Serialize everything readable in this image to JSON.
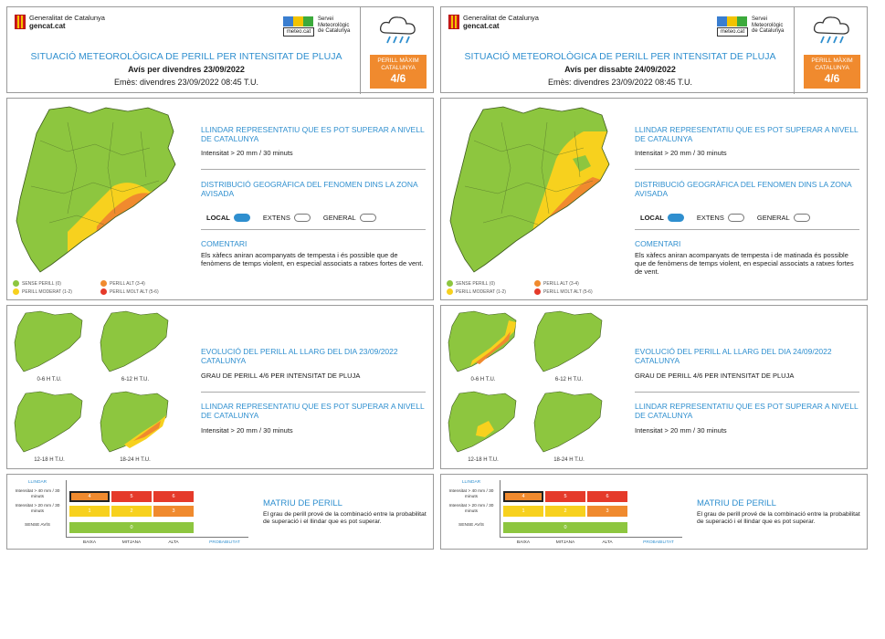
{
  "bulletins": [
    {
      "org": "Generalitat de Catalunya",
      "site": "gencat.cat",
      "smc_label": "meteo.cat",
      "smc_name": "Servei Meteorològic de Catalunya",
      "title": "SITUACIÓ METEOROLÒGICA DE PERILL PER INTENSITAT DE PLUJA",
      "subtitle": "Avís per divendres 23/09/2022",
      "issued": "Emès: divendres 23/09/2022 08:45 T.U.",
      "max_label": "PERILL MÀXIM CATALUNYA",
      "max_value": "4/6",
      "threshold_heading": "LLINDAR REPRESENTATIU QUE ES POT SUPERAR A NIVELL DE CATALUNYA",
      "threshold_text": "Intensitat > 20 mm / 30 minuts",
      "distribution_heading": "DISTRIBUCIÓ GEOGRÀFICA DEL FENOMEN DINS LA ZONA AVISADA",
      "opt_local": "LOCAL",
      "opt_extens": "EXTENS",
      "opt_general": "GENERAL",
      "comments_heading": "COMENTARI",
      "comments_text": "Els xàfecs aniran acompanyats de tempesta i és possible que de fenòmens de temps violent, en especial associats a ratxes fortes de vent.",
      "legend": [
        "SENSE PERILL (0)",
        "PERILL MODERAT (1-2)",
        "PERILL ALT (3-4)",
        "PERILL MOLT ALT (5-6)"
      ],
      "evolution_heading": "EVOLUCIÓ DEL PERILL AL LLARG DEL DIA 23/09/2022 CATALUNYA",
      "evolution_text": "GRAU DE PERILL 4/6 PER INTENSITAT DE PLUJA",
      "threshold2_heading": "LLINDAR REPRESENTATIU QUE ES POT SUPERAR A NIVELL DE CATALUNYA",
      "threshold2_text": "Intensitat > 20 mm / 30 minuts",
      "periods": [
        "0-6 H T.U.",
        "6-12 H T.U.",
        "12-18 H T.U.",
        "18-24 H T.U."
      ],
      "matrix_title": "MATRIU DE PERILL",
      "matrix_text": "El grau de perill prové de la combinació entre la probabilitat de superació i el llindar que es pot superar.",
      "matrix_llindar": "LLINDAR",
      "matrix_rows": [
        "Intensitat > 40 mm / 30 minuts",
        "Intensitat > 20 mm / 30 minuts",
        "SENSE AVÍS"
      ],
      "matrix_cols": [
        "BAIXA",
        "MITJANA",
        "ALTA"
      ],
      "matrix_prob": "PROBABILITAT",
      "matrix_values": [
        "4",
        "5",
        "6",
        "1",
        "2",
        "3",
        "0"
      ]
    },
    {
      "org": "Generalitat de Catalunya",
      "site": "gencat.cat",
      "smc_label": "meteo.cat",
      "smc_name": "Servei Meteorològic de Catalunya",
      "title": "SITUACIÓ METEOROLÒGICA DE PERILL PER INTENSITAT DE PLUJA",
      "subtitle": "Avís per dissabte 24/09/2022",
      "issued": "Emès: divendres 23/09/2022 08:45 T.U.",
      "max_label": "PERILL MÀXIM CATALUNYA",
      "max_value": "4/6",
      "threshold_heading": "LLINDAR REPRESENTATIU QUE ES POT SUPERAR A NIVELL DE CATALUNYA",
      "threshold_text": "Intensitat > 20 mm / 30 minuts",
      "distribution_heading": "DISTRIBUCIÓ GEOGRÀFICA DEL FENOMEN DINS LA ZONA AVISADA",
      "opt_local": "LOCAL",
      "opt_extens": "EXTENS",
      "opt_general": "GENERAL",
      "comments_heading": "COMENTARI",
      "comments_text": "Els xàfecs aniran acompanyats de tempesta i de matinada és possible que de fenòmens de temps violent, en especial associats a ratxes fortes de vent.",
      "legend": [
        "SENSE PERILL (0)",
        "PERILL MODERAT (1-2)",
        "PERILL ALT (3-4)",
        "PERILL MOLT ALT (5-6)"
      ],
      "evolution_heading": "EVOLUCIÓ DEL PERILL AL LLARG DEL DIA 24/09/2022 CATALUNYA",
      "evolution_text": "GRAU DE PERILL 4/6 PER INTENSITAT DE PLUJA",
      "threshold2_heading": "LLINDAR REPRESENTATIU QUE ES POT SUPERAR A NIVELL DE CATALUNYA",
      "threshold2_text": "Intensitat > 20 mm / 30 minuts",
      "periods": [
        "0-6 H T.U.",
        "6-12 H T.U.",
        "12-18 H T.U.",
        "18-24 H T.U."
      ],
      "matrix_title": "MATRIU DE PERILL",
      "matrix_text": "El grau de perill prové de la combinació entre la probabilitat de superació i el llindar que es pot superar.",
      "matrix_llindar": "LLINDAR",
      "matrix_rows": [
        "Intensitat > 40 mm / 30 minuts",
        "Intensitat > 20 mm / 30 minuts",
        "SENSE AVÍS"
      ],
      "matrix_cols": [
        "BAIXA",
        "MITJANA",
        "ALTA"
      ],
      "matrix_prob": "PROBABILITAT",
      "matrix_values": [
        "4",
        "5",
        "6",
        "1",
        "2",
        "3",
        "0"
      ]
    }
  ],
  "colors": {
    "sense_perill": "#8dc63f",
    "moderat": "#f7d11e",
    "alt": "#f08a2e",
    "molt_alt": "#e53a2a",
    "accent": "#2f8fcf"
  }
}
